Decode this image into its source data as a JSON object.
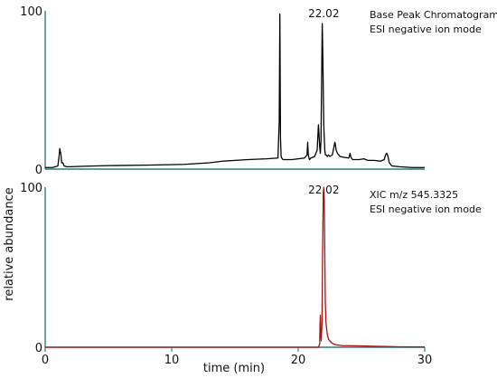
{
  "chart_data": [
    {
      "type": "line",
      "annotation_lines": [
        "Base Peak Chromatogram",
        "ESI negative ion mode"
      ],
      "peak_label": "22.02",
      "peak_label_x": 22.02,
      "ylim": [
        0,
        100
      ],
      "ytick_labels": [
        "0",
        "100"
      ],
      "xlim": [
        0,
        30
      ],
      "line_color": "#000000",
      "series": [
        {
          "x": [
            0,
            0.6,
            1.0,
            1.1,
            1.15,
            1.2,
            1.25,
            1.3,
            1.4,
            1.5,
            1.7,
            2.0,
            3.0,
            5.0,
            8.0,
            11.0,
            13.0,
            14.0,
            16.0,
            17.5,
            18.4,
            18.5,
            18.55,
            18.6,
            18.65,
            18.7,
            18.8,
            19.0,
            19.5,
            20.0,
            20.5,
            20.7,
            20.75,
            20.8,
            20.85,
            20.9,
            21.0,
            21.3,
            21.5,
            21.6,
            21.7,
            21.75,
            21.8,
            21.85,
            21.9,
            21.95,
            22.0,
            22.02,
            22.05,
            22.1,
            22.15,
            22.2,
            22.3,
            22.4,
            22.5,
            22.7,
            22.8,
            22.9,
            22.95,
            23.0,
            23.1,
            23.3,
            23.6,
            24.0,
            24.1,
            24.15,
            24.2,
            24.3,
            24.8,
            25.2,
            25.5,
            26.0,
            26.5,
            26.8,
            26.9,
            27.0,
            27.1,
            27.2,
            27.4,
            28.0,
            29.0,
            30.0
          ],
          "y": [
            1,
            1,
            2,
            8,
            13,
            11,
            9,
            4,
            4,
            2,
            1.5,
            1.5,
            1.8,
            2.2,
            2.5,
            3,
            4,
            5,
            6,
            6.5,
            7,
            30,
            98,
            20,
            8,
            7,
            6,
            6,
            6,
            6.5,
            7,
            9,
            17,
            9,
            7,
            6,
            7,
            8,
            12,
            28,
            14,
            10,
            18,
            55,
            92,
            70,
            40,
            28,
            22,
            12,
            9,
            9,
            8,
            9,
            8,
            9,
            13,
            17,
            15,
            12,
            10,
            8,
            7.5,
            7,
            10,
            8,
            7,
            6,
            6,
            6.5,
            5.5,
            5.5,
            5,
            6,
            9,
            10,
            8,
            4,
            2,
            1.5,
            1,
            1
          ]
        }
      ]
    },
    {
      "type": "line",
      "annotation_lines": [
        "XIC m/z 545.3325",
        "ESI negative ion mode"
      ],
      "peak_label": "22.02",
      "peak_label_x": 22.02,
      "ylim": [
        0,
        100
      ],
      "ytick_labels": [
        "0",
        "100"
      ],
      "xlim": [
        0,
        30
      ],
      "xticks": [
        0,
        10,
        20,
        30
      ],
      "xtick_labels": [
        "0",
        "10",
        "20",
        "30"
      ],
      "xlabel": "time (min)",
      "line_color": "#aa1111",
      "series": [
        {
          "x": [
            0,
            10,
            20,
            21.6,
            21.7,
            21.72,
            21.75,
            21.78,
            21.82,
            21.88,
            21.93,
            21.98,
            22.02,
            22.06,
            22.1,
            22.14,
            22.2,
            22.3,
            22.4,
            22.6,
            22.8,
            23.0,
            23.5,
            24.0,
            25.0,
            26.0,
            27.0,
            28.0,
            30.0
          ],
          "y": [
            0,
            0,
            0,
            0,
            2,
            12,
            20,
            8,
            4,
            15,
            60,
            95,
            100,
            92,
            60,
            30,
            15,
            8,
            5,
            3,
            2,
            1.5,
            1,
            1,
            0.8,
            0.6,
            0.5,
            0.3,
            0.2
          ]
        }
      ]
    }
  ],
  "shared_ylabel": "relative abundance"
}
